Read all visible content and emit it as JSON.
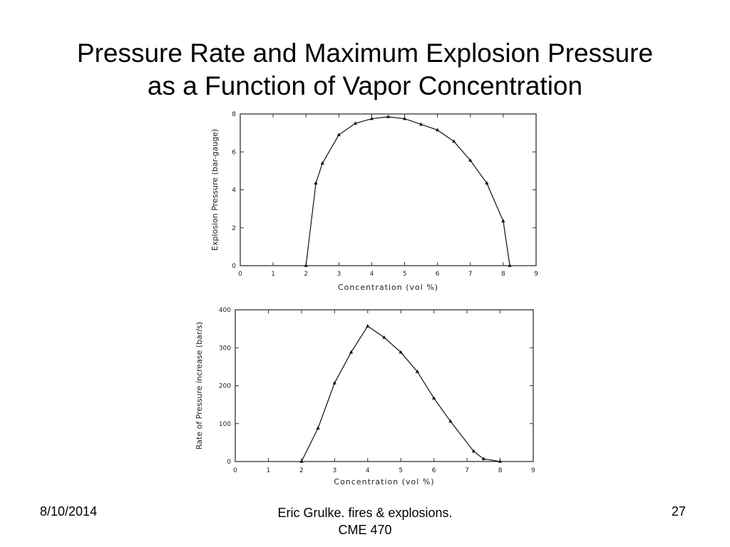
{
  "slide": {
    "title_line1": "Pressure Rate and Maximum Explosion Pressure",
    "title_line2": "as a Function of Vapor Concentration"
  },
  "footer": {
    "date": "8/10/2014",
    "center_line1": "Eric Grulke.  fires & explosions.",
    "center_line2": "CME 470",
    "page_number": "27"
  },
  "chart_data": [
    {
      "type": "line",
      "title": "",
      "xlabel": "Concentration (vol %)",
      "ylabel": "Explosion Pressure (bar-gauge)",
      "xlim": [
        0,
        9
      ],
      "ylim": [
        0,
        8
      ],
      "xticks": [
        0,
        1,
        2,
        3,
        4,
        5,
        6,
        7,
        8,
        9
      ],
      "yticks": [
        0,
        2,
        4,
        6,
        8
      ],
      "grid": false,
      "marker": "triangle",
      "series": [
        {
          "x": [
            2.0,
            2.3,
            2.5,
            3.0,
            3.5,
            4.0,
            4.5,
            5.0,
            5.5,
            6.0,
            6.5,
            7.0,
            7.5,
            8.0,
            8.2
          ],
          "y": [
            0,
            4.35,
            5.4,
            6.9,
            7.5,
            7.75,
            7.85,
            7.75,
            7.45,
            7.15,
            6.55,
            5.55,
            4.35,
            2.35,
            0
          ]
        }
      ]
    },
    {
      "type": "line",
      "title": "",
      "xlabel": "Concentration (vol %)",
      "ylabel": "Rate of Pressure increase (bar/s)",
      "xlim": [
        0,
        9
      ],
      "ylim": [
        0,
        400
      ],
      "xticks": [
        0,
        1,
        2,
        3,
        4,
        5,
        6,
        7,
        8,
        9
      ],
      "yticks": [
        0,
        100,
        200,
        300,
        400
      ],
      "grid": false,
      "marker": "triangle",
      "series": [
        {
          "x": [
            2.0,
            2.5,
            3.0,
            3.5,
            4.0,
            4.5,
            5.0,
            5.5,
            6.0,
            6.5,
            7.2,
            7.5,
            8.0
          ],
          "y": [
            0,
            88,
            207,
            288,
            357,
            327,
            288,
            237,
            167,
            106,
            27,
            7,
            0
          ]
        }
      ]
    }
  ]
}
